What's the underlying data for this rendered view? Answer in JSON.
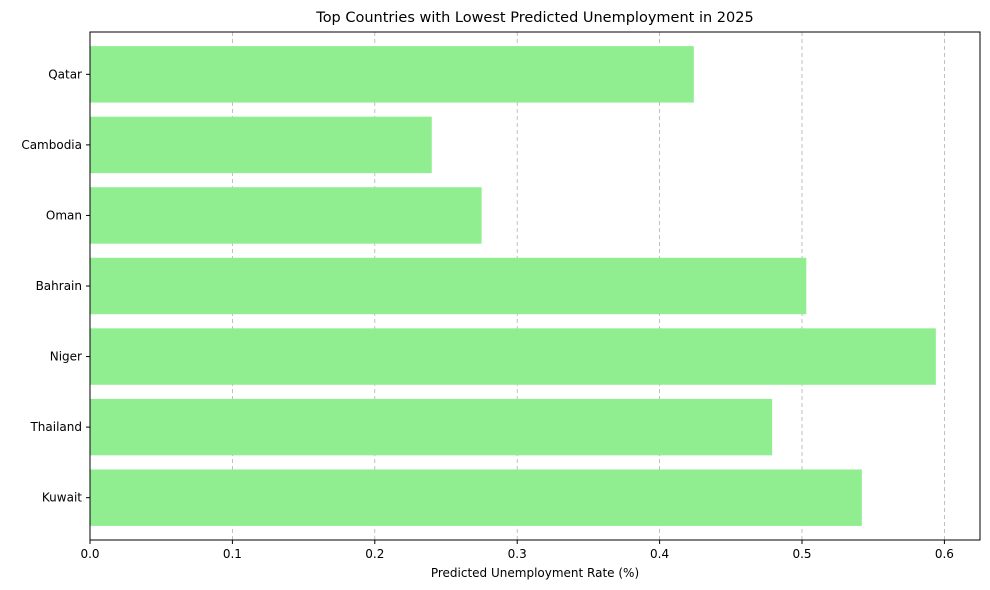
{
  "chart_data": {
    "type": "bar",
    "orientation": "horizontal",
    "title": "Top Countries with Lowest Predicted Unemployment in 2025",
    "xlabel": "Predicted Unemployment Rate (%)",
    "ylabel": "",
    "categories": [
      "Qatar",
      "Cambodia",
      "Oman",
      "Bahrain",
      "Niger",
      "Thailand",
      "Kuwait"
    ],
    "values": [
      0.424,
      0.24,
      0.275,
      0.503,
      0.594,
      0.479,
      0.542
    ],
    "xlim": [
      0,
      0.625
    ],
    "xticks": [
      0.0,
      0.1,
      0.2,
      0.3,
      0.4,
      0.5,
      0.6
    ],
    "xtick_labels": [
      "0.0",
      "0.1",
      "0.2",
      "0.3",
      "0.4",
      "0.5",
      "0.6"
    ],
    "grid": "x-dashed",
    "bar_color": "#90ee90",
    "legend": "none"
  }
}
